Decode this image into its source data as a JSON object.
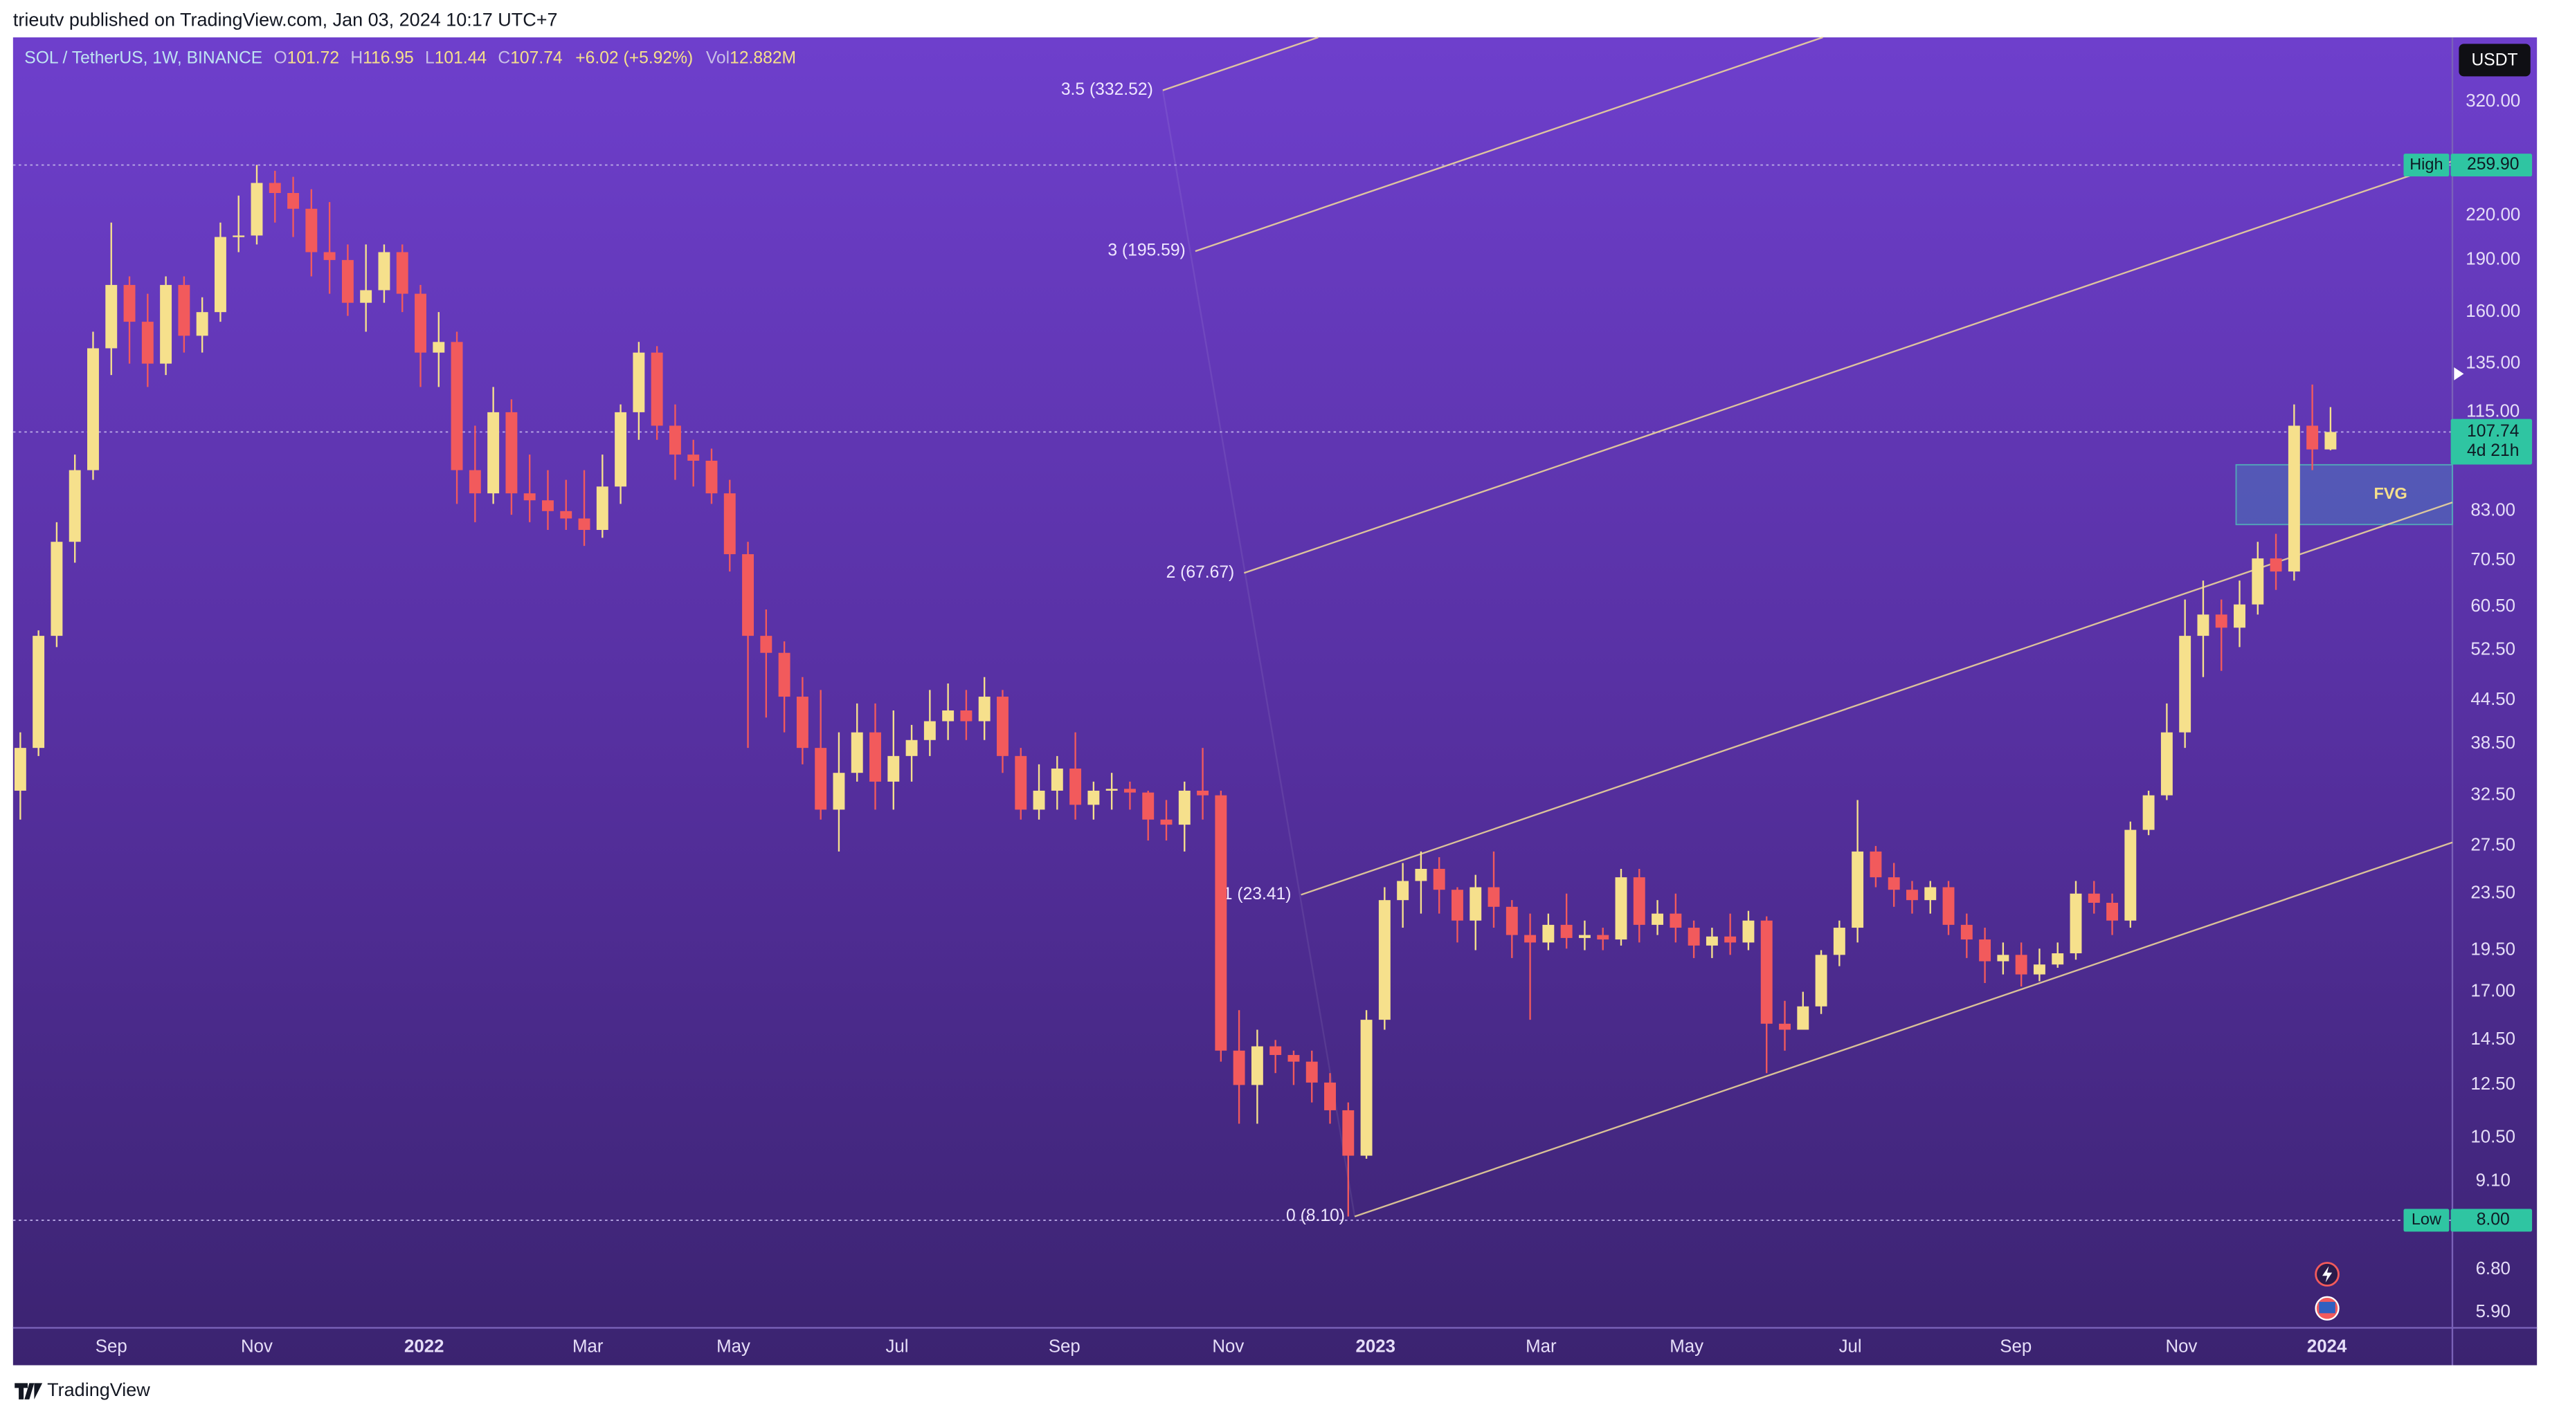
{
  "chart_data": {
    "type": "candlestick",
    "header": "trieutv published on TradingView.com, Jan 03, 2024 10:17 UTC+7",
    "footer": "TradingView",
    "currency": "USDT",
    "legend": {
      "symbol": "SOL / TetherUS, 1W, BINANCE",
      "items": [
        {
          "key": "O",
          "value": "101.72"
        },
        {
          "key": "H",
          "value": "116.95"
        },
        {
          "key": "L",
          "value": "101.44"
        },
        {
          "key": "C",
          "value": "107.74"
        }
      ],
      "change": "+6.02 (+5.92%)",
      "volume": {
        "key": "Vol",
        "value": "12.882M"
      }
    },
    "up_color": "#f6e08c",
    "down_color": "#f25a5c",
    "log": true,
    "grid": false,
    "open": [
      33,
      38,
      55,
      75,
      95,
      142,
      175,
      155,
      135,
      175,
      148,
      160,
      205,
      206,
      245,
      237,
      225,
      195,
      190,
      165,
      172,
      195,
      170,
      140,
      145,
      95,
      88,
      115,
      88,
      86,
      83,
      81,
      78,
      90,
      115,
      140,
      110,
      100,
      98,
      88,
      72,
      55,
      52,
      45,
      38,
      31,
      35,
      40,
      34,
      37,
      39,
      41.5,
      43,
      41.5,
      45,
      37,
      31,
      33,
      35.5,
      31.5,
      33,
      33.2,
      32.8,
      30,
      29.5,
      33,
      32.5,
      14,
      12.5,
      14.2,
      13.8,
      13.5,
      12.6,
      11.5,
      9.9,
      15.5,
      23,
      24.5,
      25.5,
      23.8,
      21.5,
      24,
      22.5,
      20.5,
      20,
      21.2,
      20.3,
      20.5,
      20.2,
      24.8,
      21.2,
      22,
      21,
      19.8,
      20.4,
      20,
      21.5,
      15.3,
      15,
      16.2,
      19.2,
      21,
      27,
      24.8,
      23.8,
      23,
      24,
      21.2,
      20.2,
      18.8,
      19.2,
      18,
      18.6,
      19.3,
      23.5,
      22.8,
      21.5,
      29,
      32.5,
      40,
      55,
      59,
      56.5,
      61,
      71,
      68,
      110,
      101.72
    ],
    "high": [
      40,
      56,
      80,
      100,
      150,
      215,
      180,
      170,
      180,
      180,
      168,
      215,
      235,
      260,
      255,
      250,
      240,
      230,
      200,
      200,
      200,
      200,
      175,
      160,
      150,
      110,
      125,
      120,
      100,
      95,
      92,
      95,
      100,
      118,
      145,
      143,
      118,
      105,
      102,
      92,
      75,
      60,
      54,
      48,
      46,
      40,
      44,
      44,
      43,
      41,
      46,
      47,
      46,
      48,
      46,
      38,
      36,
      37,
      40,
      34,
      35,
      34,
      33,
      32,
      34,
      38,
      33,
      16,
      15,
      14.5,
      14,
      14,
      13,
      11.8,
      16,
      24,
      26,
      27,
      26.5,
      24,
      25,
      27,
      23,
      22,
      22,
      23.5,
      21.5,
      21,
      25.5,
      25.5,
      23,
      23.5,
      21.5,
      21,
      22,
      22.2,
      21.8,
      16.5,
      17,
      19.5,
      21.5,
      32,
      27.5,
      26,
      24.5,
      24.5,
      24.5,
      22,
      21,
      20,
      20,
      19.6,
      20,
      24.5,
      24.5,
      23.5,
      29.8,
      33,
      44,
      62,
      66,
      62,
      66,
      75,
      77,
      118,
      126,
      116.95
    ],
    "low": [
      30,
      37,
      53,
      70,
      92,
      130,
      135,
      125,
      130,
      140,
      140,
      155,
      195,
      200,
      215,
      205,
      180,
      170,
      158,
      150,
      165,
      160,
      125,
      125,
      85,
      80,
      85,
      82,
      80,
      78,
      78,
      74,
      76,
      85,
      105,
      105,
      92,
      90,
      85,
      68,
      38,
      42,
      40,
      36,
      30,
      27,
      34,
      31,
      31,
      34,
      37,
      39,
      39,
      39,
      35,
      30,
      30,
      31,
      30,
      30,
      31,
      31,
      28,
      28,
      27,
      30,
      13.5,
      11,
      11,
      13,
      12.5,
      11.8,
      11,
      8.1,
      9.8,
      15,
      21,
      22,
      22,
      20,
      19.5,
      21,
      19,
      15.5,
      19.5,
      19.6,
      19.5,
      19.5,
      19.8,
      20,
      20.5,
      20,
      19,
      19,
      19.2,
      19.5,
      13,
      14,
      15,
      15.8,
      18.5,
      20,
      24,
      22.5,
      22,
      22,
      20.5,
      19,
      17.5,
      18,
      17.3,
      17.6,
      18.4,
      18.9,
      22,
      20.5,
      21,
      28.5,
      32,
      38,
      48,
      49,
      53,
      59,
      64,
      66,
      95,
      101.44
    ],
    "close": [
      38,
      55,
      75,
      95,
      142,
      175,
      155,
      135,
      175,
      148,
      160,
      205,
      206,
      245,
      237,
      225,
      195,
      190,
      165,
      172,
      195,
      170,
      140,
      145,
      95,
      88,
      115,
      88,
      86,
      83,
      81,
      78,
      90,
      115,
      140,
      110,
      100,
      98,
      88,
      72,
      55,
      52,
      45,
      38,
      31,
      35,
      40,
      34,
      37,
      39,
      41.5,
      43,
      41.5,
      45,
      37,
      31,
      33,
      35.5,
      31.5,
      33,
      33.2,
      32.8,
      30,
      29.5,
      33,
      32.5,
      14,
      12.5,
      14.2,
      13.8,
      13.5,
      12.6,
      11.5,
      9.9,
      15.5,
      23,
      24.5,
      25.5,
      23.8,
      21.5,
      24,
      22.5,
      20.5,
      20,
      21.2,
      20.3,
      20.5,
      20.2,
      24.8,
      21.2,
      22,
      21,
      19.8,
      20.4,
      20,
      21.5,
      15.3,
      15,
      16.2,
      19.2,
      21,
      27,
      24.8,
      23.8,
      23,
      24,
      21.2,
      20.2,
      18.8,
      19.2,
      18,
      18.6,
      19.3,
      23.5,
      22.8,
      21.5,
      29,
      32.5,
      40,
      55,
      59,
      56.5,
      61,
      71,
      68,
      110,
      101.72,
      107.74
    ],
    "xlim": [
      -0.4,
      133.7
    ],
    "xticks": [
      {
        "value": 5.0,
        "label": "Sep"
      },
      {
        "value": 13.0,
        "label": "Nov"
      },
      {
        "value": 22.2,
        "label": "2022"
      },
      {
        "value": 31.2,
        "label": "Mar"
      },
      {
        "value": 39.2,
        "label": "May"
      },
      {
        "value": 48.2,
        "label": "Jul"
      },
      {
        "value": 57.4,
        "label": "Sep"
      },
      {
        "value": 66.4,
        "label": "Nov"
      },
      {
        "value": 74.5,
        "label": "2023"
      },
      {
        "value": 83.6,
        "label": "Mar"
      },
      {
        "value": 91.6,
        "label": "May"
      },
      {
        "value": 100.6,
        "label": "Jul"
      },
      {
        "value": 109.7,
        "label": "Sep"
      },
      {
        "value": 118.8,
        "label": "Nov"
      },
      {
        "value": 126.8,
        "label": "2024"
      }
    ],
    "ylim": [
      5.61,
      396
    ],
    "yticks": [
      {
        "value": 320,
        "label": "320.00"
      },
      {
        "value": 220,
        "label": "220.00"
      },
      {
        "value": 190,
        "label": "190.00"
      },
      {
        "value": 160,
        "label": "160.00"
      },
      {
        "value": 135,
        "label": "135.00"
      },
      {
        "value": 115,
        "label": "115.00"
      },
      {
        "value": 83,
        "label": "83.00"
      },
      {
        "value": 70.5,
        "label": "70.50"
      },
      {
        "value": 60.5,
        "label": "60.50"
      },
      {
        "value": 52.5,
        "label": "52.50"
      },
      {
        "value": 44.5,
        "label": "44.50"
      },
      {
        "value": 38.5,
        "label": "38.50"
      },
      {
        "value": 32.5,
        "label": "32.50"
      },
      {
        "value": 27.5,
        "label": "27.50"
      },
      {
        "value": 23.5,
        "label": "23.50"
      },
      {
        "value": 19.5,
        "label": "19.50"
      },
      {
        "value": 17,
        "label": "17.00"
      },
      {
        "value": 14.5,
        "label": "14.50"
      },
      {
        "value": 12.5,
        "label": "12.50"
      },
      {
        "value": 10.5,
        "label": "10.50"
      },
      {
        "value": 9.1,
        "label": "9.10"
      },
      {
        "value": 6.8,
        "label": "6.80"
      },
      {
        "value": 5.9,
        "label": "5.90"
      }
    ],
    "fib_levels": [
      {
        "label": "0 (8.10)",
        "price": 8.1
      },
      {
        "label": "1 (23.41)",
        "price": 23.41
      },
      {
        "label": "2 (67.67)",
        "price": 67.67
      },
      {
        "label": "3 (195.59)",
        "price": 195.59
      },
      {
        "label": "3.5 (332.52)",
        "price": 332.52
      }
    ],
    "fvg": {
      "label": "FVG",
      "top": 96.7,
      "bottom": 79.4
    },
    "high_marker": {
      "label": "High",
      "price": {
        "value": 259.9,
        "label": "259.90"
      }
    },
    "low_marker": {
      "label": "Low",
      "price": {
        "value": 8,
        "label": "8.00"
      }
    },
    "last_price": {
      "price": 107.74,
      "countdown": "4d 21h"
    }
  }
}
